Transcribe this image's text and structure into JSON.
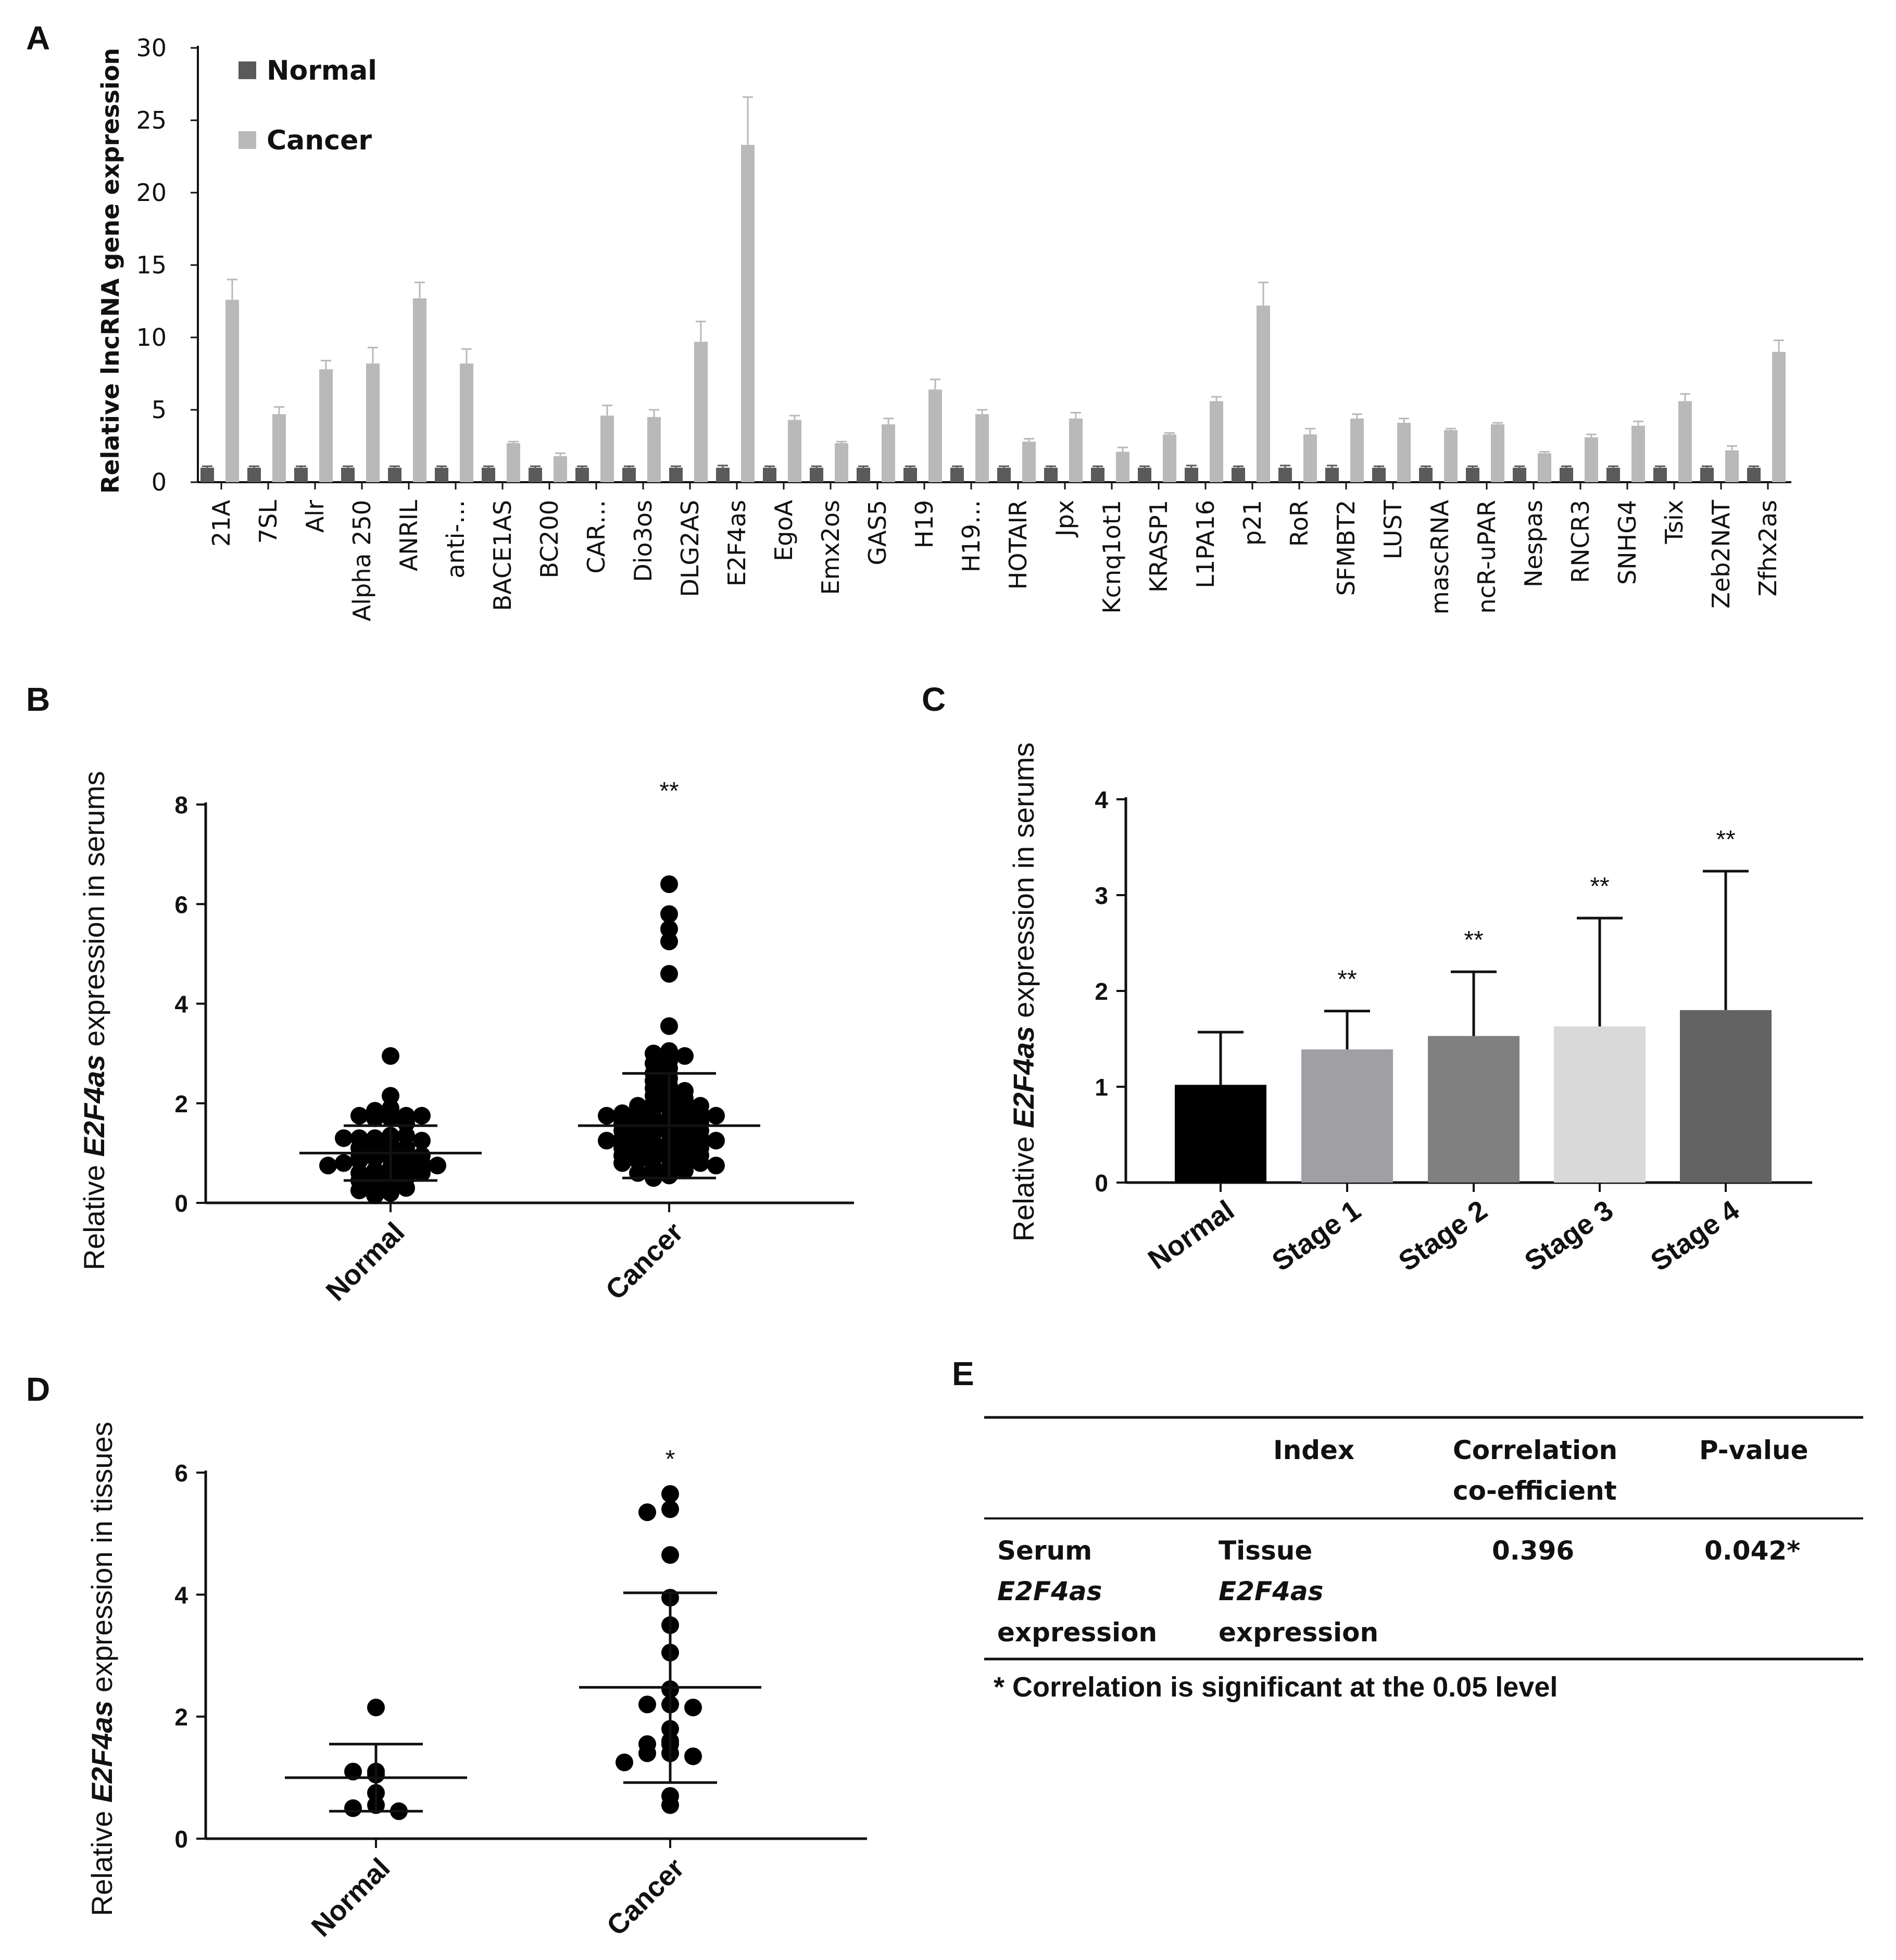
{
  "panel_labels": [
    "A",
    "B",
    "C",
    "D",
    "E"
  ],
  "chart_data": [
    {
      "panel": "A",
      "type": "bar",
      "ylabel": "Relative lncRNA gene expression",
      "ylim": [
        0,
        30
      ],
      "yticks": [
        0,
        5,
        10,
        15,
        20,
        25,
        30
      ],
      "legend": "top-left",
      "categories": [
        "21A",
        "7SL",
        "Alr",
        "Alpha 250",
        "ANRIL",
        "anti-…",
        "BACE1AS",
        "BC200",
        "CAR…",
        "Dio3os",
        "DLG2AS",
        "E2F4as",
        "EgoA",
        "Emx2os",
        "GAS5",
        "H19",
        "H19…",
        "HOTAIR",
        "Jpx",
        "Kcnq1ot1",
        "KRASP1",
        "L1PA16",
        "p21",
        "RoR",
        "SFMBT2",
        "LUST",
        "mascRNA",
        "ncR-uPAR",
        "Nespas",
        "RNCR3",
        "SNHG4",
        "Tsix",
        "Zeb2NAT",
        "Zfhx2as"
      ],
      "series": [
        {
          "name": "Normal",
          "color": "#5a5a5a",
          "values": [
            1,
            1,
            1,
            1,
            1,
            1,
            1,
            1,
            1,
            1,
            1,
            1,
            1,
            1,
            1,
            1,
            1,
            1,
            1,
            1,
            1,
            1,
            1,
            1,
            1,
            1,
            1,
            1,
            1,
            1,
            1,
            1,
            1,
            1
          ],
          "errors": [
            0.1,
            0.1,
            0.1,
            0.1,
            0.1,
            0.1,
            0.1,
            0.1,
            0.1,
            0.1,
            0.1,
            0.15,
            0.1,
            0.1,
            0.1,
            0.1,
            0.1,
            0.1,
            0.1,
            0.1,
            0.1,
            0.15,
            0.1,
            0.15,
            0.15,
            0.1,
            0.1,
            0.1,
            0.1,
            0.1,
            0.1,
            0.1,
            0.1,
            0.1
          ]
        },
        {
          "name": "Cancer",
          "color": "#b9b9b9",
          "values": [
            12.6,
            4.7,
            7.8,
            8.2,
            12.7,
            8.2,
            2.7,
            1.8,
            4.6,
            4.5,
            9.7,
            23.3,
            4.3,
            2.7,
            4.0,
            6.4,
            4.7,
            2.8,
            4.4,
            2.1,
            3.3,
            5.6,
            12.2,
            3.3,
            4.4,
            4.1,
            3.6,
            4.0,
            2.0,
            3.1,
            3.9,
            5.6,
            2.2,
            9.0
          ],
          "errors": [
            1.4,
            0.5,
            0.6,
            1.1,
            1.1,
            1.0,
            0.1,
            0.2,
            0.7,
            0.5,
            1.4,
            3.3,
            0.3,
            0.1,
            0.4,
            0.7,
            0.3,
            0.2,
            0.4,
            0.3,
            0.1,
            0.3,
            1.6,
            0.4,
            0.3,
            0.3,
            0.1,
            0.1,
            0.1,
            0.2,
            0.3,
            0.5,
            0.3,
            0.8
          ]
        }
      ]
    },
    {
      "panel": "B",
      "type": "scatter",
      "ylabel_prefix": "Relative ",
      "ylabel_gene": "E2F4as",
      "ylabel_suffix": " expression in serums",
      "ylim": [
        0,
        8
      ],
      "yticks": [
        0,
        2,
        4,
        6,
        8
      ],
      "categories": [
        "Normal",
        "Cancer"
      ],
      "significance": [
        "",
        "**"
      ],
      "summary": [
        {
          "mean": 1.0,
          "sd_low": 0.45,
          "sd_high": 1.55
        },
        {
          "mean": 1.55,
          "sd_low": 0.5,
          "sd_high": 2.6
        }
      ],
      "points": [
        [
          2.95,
          1.9,
          1.85,
          1.75,
          1.75,
          1.75,
          1.7,
          1.7,
          1.6,
          2.15,
          1.35,
          1.3,
          1.35,
          1.3,
          1.25,
          1.3,
          1.2,
          1.15,
          1.1,
          1.1,
          1.05,
          1.0,
          1.0,
          0.95,
          0.95,
          0.9,
          0.9,
          0.85,
          0.85,
          0.8,
          0.8,
          0.75,
          0.75,
          0.7,
          0.65,
          0.65,
          0.6,
          0.6,
          0.55,
          0.55,
          0.5,
          0.45,
          0.4,
          0.35,
          0.3,
          0.25,
          0.2,
          0.15
        ],
        [
          6.4,
          5.8,
          5.5,
          5.25,
          4.6,
          3.55,
          3.05,
          3.0,
          2.95,
          2.85,
          2.8,
          2.7,
          2.6,
          2.5,
          2.45,
          2.35,
          2.3,
          2.25,
          2.2,
          2.15,
          2.1,
          2.05,
          2.0,
          2.0,
          1.95,
          1.95,
          1.9,
          1.9,
          1.85,
          1.85,
          1.8,
          1.8,
          1.75,
          1.75,
          1.7,
          1.7,
          1.65,
          1.65,
          1.6,
          1.6,
          1.55,
          1.55,
          1.5,
          1.5,
          1.45,
          1.45,
          1.4,
          1.4,
          1.35,
          1.35,
          1.3,
          1.3,
          1.25,
          1.25,
          1.2,
          1.2,
          1.15,
          1.15,
          1.1,
          1.1,
          1.05,
          1.05,
          1.0,
          1.0,
          0.95,
          0.95,
          0.9,
          0.9,
          0.85,
          0.85,
          0.8,
          0.8,
          0.75,
          0.7,
          0.7,
          0.65,
          0.6,
          0.55,
          0.5
        ]
      ]
    },
    {
      "panel": "C",
      "type": "bar",
      "ylabel_prefix": "Relative ",
      "ylabel_gene": "E2F4as",
      "ylabel_suffix": " expression in serums",
      "ylim": [
        0,
        4
      ],
      "yticks": [
        0,
        1,
        2,
        3,
        4
      ],
      "categories": [
        "Normal",
        "Stage 1",
        "Stage 2",
        "Stage 3",
        "Stage 4"
      ],
      "values": [
        1.02,
        1.39,
        1.53,
        1.63,
        1.8
      ],
      "errors": [
        0.55,
        0.4,
        0.67,
        1.13,
        1.45
      ],
      "colors": [
        "#000000",
        "#a0a0a4",
        "#808080",
        "#d9d9d9",
        "#636363"
      ],
      "significance": [
        "",
        "**",
        "**",
        "**",
        "**"
      ]
    },
    {
      "panel": "D",
      "type": "scatter",
      "ylabel_prefix": "Relative ",
      "ylabel_gene": "E2F4as",
      "ylabel_suffix": " expression in tissues",
      "ylim": [
        0,
        6
      ],
      "yticks": [
        0,
        2,
        4,
        6
      ],
      "categories": [
        "Normal",
        "Cancer"
      ],
      "significance": [
        "",
        "*"
      ],
      "summary": [
        {
          "mean": 1.0,
          "sd_low": 0.45,
          "sd_high": 1.55
        },
        {
          "mean": 2.48,
          "sd_low": 0.92,
          "sd_high": 4.03
        }
      ],
      "points": [
        [
          2.15,
          1.1,
          1.1,
          1.05,
          0.75,
          0.55,
          0.5,
          0.45
        ],
        [
          5.65,
          5.4,
          5.35,
          4.65,
          3.95,
          3.5,
          3.05,
          2.45,
          2.2,
          2.2,
          2.15,
          1.8,
          1.6,
          1.55,
          1.55,
          1.4,
          1.4,
          1.35,
          1.25,
          0.7,
          0.55
        ]
      ]
    }
  ],
  "table": {
    "panel": "E",
    "headers": [
      "",
      "Index",
      "Correlation",
      "co-efficient",
      "P-value"
    ],
    "row": {
      "col1_line1": "Serum",
      "col1_gene": "E2F4as",
      "col1_line3": "expression",
      "col2_line1": "Tissue",
      "col2_gene": "E2F4as",
      "col2_line3": "expression",
      "coefficient": "0.396",
      "p_value": "0.042*"
    },
    "footnote": "* Correlation is significant at the 0.05 level"
  }
}
